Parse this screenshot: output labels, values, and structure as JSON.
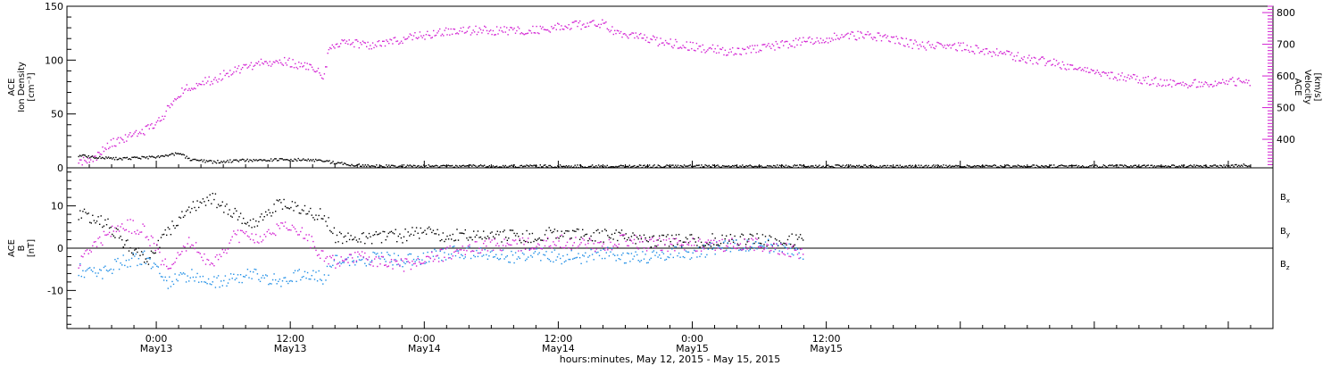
{
  "colors": {
    "black": "#000000",
    "magenta": "#d21fd2",
    "blue": "#1f8ee6"
  },
  "chart_data": [
    {
      "type": "scatter",
      "panel": "top",
      "left_axis": {
        "title_lines": [
          "ACE",
          "Ion Density",
          "[cm⁻³]"
        ],
        "ylim": [
          0,
          150
        ],
        "ticks": [
          "0",
          "50",
          "100",
          "150"
        ]
      },
      "right_axis": {
        "title_lines": [
          "ACE",
          "Velocity",
          "[km/s]"
        ],
        "ylim": [
          310,
          820
        ],
        "ticks": [
          "400",
          "500",
          "600",
          "700",
          "800"
        ]
      },
      "x_hours_range": [
        -8,
        100
      ],
      "series": [
        {
          "color": "magenta",
          "axis": "right",
          "points": [
            [
              -7,
              330
            ],
            [
              -5.5,
              345
            ],
            [
              -4,
              390
            ],
            [
              -2.5,
              410
            ],
            [
              -1,
              430
            ],
            [
              0.5,
              470
            ],
            [
              1.5,
              530
            ],
            [
              3,
              570
            ],
            [
              5,
              590
            ],
            [
              7,
              620
            ],
            [
              9,
              640
            ],
            [
              11,
              650
            ],
            [
              12.5,
              640
            ],
            [
              14,
              625
            ],
            [
              15,
              600
            ],
            [
              15.5,
              700
            ],
            [
              17,
              710
            ],
            [
              19,
              700
            ],
            [
              21,
              710
            ],
            [
              23,
              725
            ],
            [
              25,
              735
            ],
            [
              27,
              745
            ],
            [
              29,
              745
            ],
            [
              31,
              745
            ],
            [
              33,
              745
            ],
            [
              35,
              750
            ],
            [
              37,
              760
            ],
            [
              39,
              765
            ],
            [
              40,
              765
            ],
            [
              41,
              745
            ],
            [
              43,
              725
            ],
            [
              45,
              710
            ],
            [
              47,
              700
            ],
            [
              49,
              690
            ],
            [
              51,
              680
            ],
            [
              53,
              685
            ],
            [
              55,
              695
            ],
            [
              57,
              705
            ],
            [
              59,
              715
            ],
            [
              61,
              725
            ],
            [
              63,
              730
            ],
            [
              65,
              725
            ],
            [
              66,
              715
            ],
            [
              68,
              700
            ],
            [
              70,
              695
            ],
            [
              72,
              695
            ],
            [
              74,
              680
            ],
            [
              76,
              670
            ],
            [
              78,
              655
            ],
            [
              80,
              645
            ],
            [
              82,
              630
            ],
            [
              84,
              615
            ],
            [
              86,
              600
            ],
            [
              88,
              590
            ],
            [
              90,
              580
            ],
            [
              92,
              575
            ],
            [
              94,
              580
            ],
            [
              96,
              585
            ],
            [
              98,
              585
            ]
          ]
        },
        {
          "color": "black",
          "axis": "left",
          "points": [
            [
              -7,
              12
            ],
            [
              -5,
              10
            ],
            [
              -3,
              9
            ],
            [
              -1,
              10
            ],
            [
              1,
              12
            ],
            [
              2,
              14
            ],
            [
              3,
              8
            ],
            [
              5,
              6
            ],
            [
              7,
              7
            ],
            [
              9,
              8
            ],
            [
              11,
              8
            ],
            [
              13,
              8
            ],
            [
              15,
              7
            ],
            [
              16,
              5
            ],
            [
              18,
              3
            ],
            [
              20,
              2
            ],
            [
              22,
              2
            ],
            [
              25,
              2
            ],
            [
              28,
              2
            ],
            [
              30,
              2
            ],
            [
              35,
              2
            ],
            [
              40,
              2
            ],
            [
              45,
              2
            ],
            [
              50,
              2
            ],
            [
              55,
              2
            ],
            [
              60,
              2
            ],
            [
              65,
              2
            ],
            [
              70,
              2
            ],
            [
              75,
              2
            ],
            [
              80,
              2
            ],
            [
              85,
              2
            ],
            [
              90,
              2
            ],
            [
              95,
              2
            ],
            [
              98,
              3
            ]
          ]
        }
      ]
    },
    {
      "type": "scatter",
      "panel": "bottom",
      "left_axis": {
        "title_lines": [
          "ACE",
          "B",
          "[nT]"
        ],
        "ylim": [
          -19,
          19
        ],
        "ticks": [
          "-10",
          "0",
          "10"
        ]
      },
      "x_hours_range": [
        -8,
        100
      ],
      "x_ticks": [
        {
          "hours": 0,
          "time": "0:00",
          "date": "May13"
        },
        {
          "hours": 12,
          "time": "12:00",
          "date": "May13"
        },
        {
          "hours": 24,
          "time": "0:00",
          "date": "May14"
        },
        {
          "hours": 36,
          "time": "12:00",
          "date": "May14"
        },
        {
          "hours": 48,
          "time": "0:00",
          "date": "May15"
        },
        {
          "hours": 60,
          "time": "12:00",
          "date": "May15"
        }
      ],
      "xlabel": "hours:minutes, May 12, 2015 - May 15, 2015",
      "series": [
        {
          "name_base": "B",
          "name_sub": "x",
          "color": "black",
          "points": [
            [
              -7,
              8
            ],
            [
              -5,
              7
            ],
            [
              -3,
              2
            ],
            [
              -1,
              -3
            ],
            [
              1,
              4
            ],
            [
              3,
              10
            ],
            [
              5,
              12
            ],
            [
              7,
              8
            ],
            [
              9,
              6
            ],
            [
              11,
              11
            ],
            [
              13,
              9
            ],
            [
              15,
              8
            ],
            [
              16,
              3
            ],
            [
              18,
              2
            ],
            [
              20,
              3
            ],
            [
              22,
              3
            ],
            [
              24,
              4
            ],
            [
              26,
              3
            ],
            [
              28,
              3
            ],
            [
              30,
              3
            ],
            [
              32,
              3
            ],
            [
              34,
              3
            ],
            [
              36,
              4
            ],
            [
              38,
              3
            ],
            [
              40,
              3
            ],
            [
              42,
              3
            ],
            [
              44,
              2
            ],
            [
              46,
              2
            ],
            [
              48,
              2
            ],
            [
              50,
              2
            ],
            [
              52,
              2
            ],
            [
              54,
              2
            ],
            [
              56,
              2
            ],
            [
              58,
              2
            ]
          ]
        },
        {
          "name_base": "B",
          "name_sub": "y",
          "color": "blue",
          "points": [
            [
              -7,
              -5
            ],
            [
              -5,
              -6
            ],
            [
              -3,
              -3
            ],
            [
              -1,
              -2
            ],
            [
              1,
              -8
            ],
            [
              3,
              -6
            ],
            [
              5,
              -8
            ],
            [
              7,
              -7
            ],
            [
              9,
              -6
            ],
            [
              11,
              -8
            ],
            [
              13,
              -6
            ],
            [
              15,
              -7
            ],
            [
              16,
              -2
            ],
            [
              18,
              -3
            ],
            [
              20,
              -2
            ],
            [
              22,
              -3
            ],
            [
              24,
              -2
            ],
            [
              26,
              -1
            ],
            [
              28,
              -1
            ],
            [
              30,
              -1
            ],
            [
              32,
              -2
            ],
            [
              34,
              -1
            ],
            [
              36,
              -2
            ],
            [
              38,
              -2
            ],
            [
              40,
              -1
            ],
            [
              42,
              -2
            ],
            [
              44,
              -2
            ],
            [
              46,
              -1
            ],
            [
              48,
              -1
            ],
            [
              50,
              0
            ],
            [
              52,
              1
            ],
            [
              54,
              1
            ],
            [
              56,
              0
            ],
            [
              58,
              -1
            ]
          ]
        },
        {
          "name_base": "B",
          "name_sub": "z",
          "color": "magenta",
          "points": [
            [
              -7,
              -3
            ],
            [
              -5,
              2
            ],
            [
              -3,
              6
            ],
            [
              -1,
              4
            ],
            [
              1,
              -5
            ],
            [
              3,
              2
            ],
            [
              5,
              -4
            ],
            [
              7,
              3
            ],
            [
              9,
              2
            ],
            [
              11,
              5
            ],
            [
              13,
              4
            ],
            [
              15,
              -2
            ],
            [
              16,
              -3
            ],
            [
              18,
              -2
            ],
            [
              20,
              -3
            ],
            [
              22,
              -4
            ],
            [
              24,
              -3
            ],
            [
              26,
              -1
            ],
            [
              28,
              0
            ],
            [
              30,
              1
            ],
            [
              32,
              1
            ],
            [
              34,
              1
            ],
            [
              36,
              2
            ],
            [
              38,
              1
            ],
            [
              40,
              1
            ],
            [
              42,
              2
            ],
            [
              44,
              1
            ],
            [
              46,
              1
            ],
            [
              48,
              1
            ],
            [
              50,
              1
            ],
            [
              52,
              1
            ],
            [
              54,
              1
            ],
            [
              56,
              0
            ],
            [
              58,
              -1
            ]
          ]
        }
      ]
    }
  ]
}
